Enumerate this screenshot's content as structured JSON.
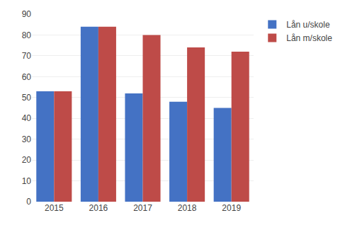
{
  "chart_data": {
    "type": "bar",
    "categories": [
      "2015",
      "2016",
      "2017",
      "2018",
      "2019"
    ],
    "series": [
      {
        "name": "Lån u/skole",
        "color": "#4472C4",
        "values": [
          53,
          84,
          52,
          48,
          45
        ]
      },
      {
        "name": "Lån m/skole",
        "color": "#BE4B48",
        "values": [
          53,
          84,
          80,
          74,
          72
        ]
      }
    ],
    "ylim": [
      0,
      90
    ],
    "yticks": [
      0,
      10,
      20,
      30,
      40,
      50,
      60,
      70,
      80,
      90
    ],
    "grid": true,
    "legend": "upper right"
  }
}
